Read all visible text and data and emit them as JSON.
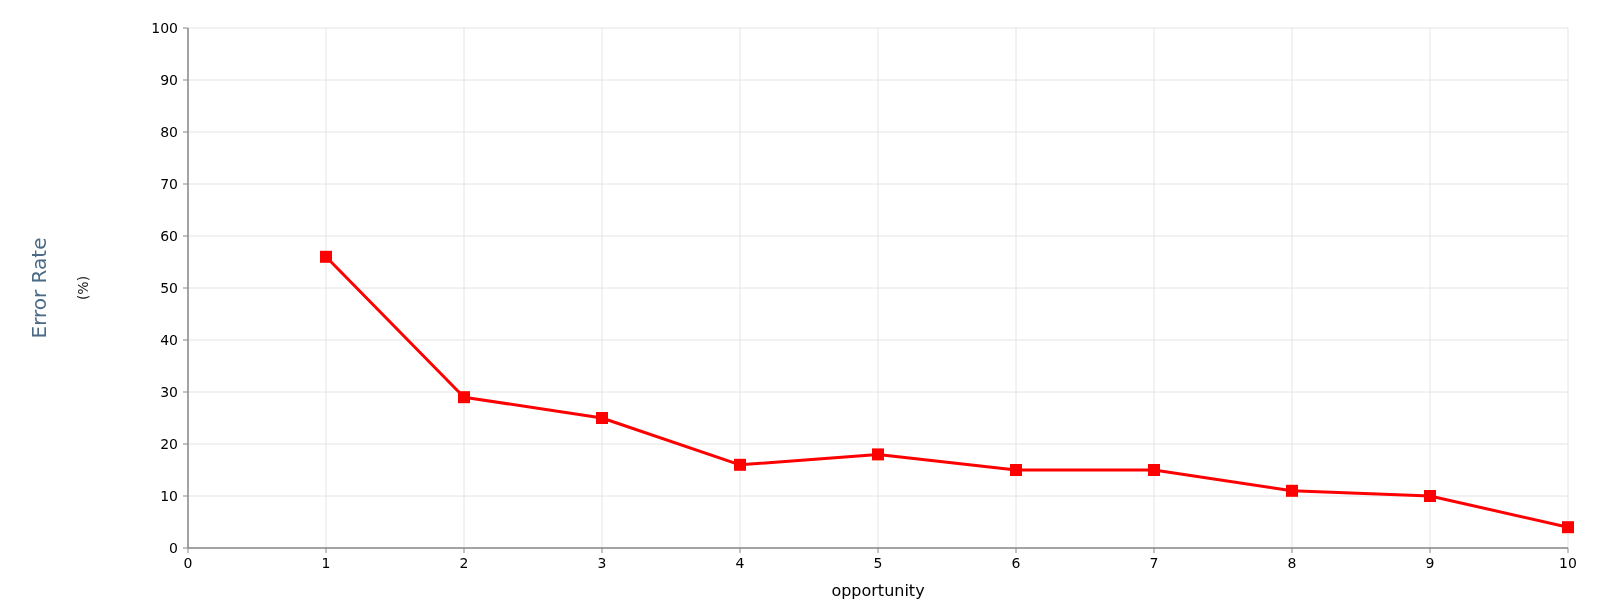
{
  "chart_data": {
    "type": "line",
    "xlabel": "opportunity",
    "ylabel": "Error Rate\n(%)",
    "x": [
      1,
      2,
      3,
      4,
      5,
      6,
      7,
      8,
      9,
      10
    ],
    "series": [
      {
        "color": "#ff0000",
        "values": [
          56,
          29,
          25,
          16,
          18,
          15,
          15,
          11,
          10,
          4
        ]
      }
    ],
    "xlim": [
      0,
      10
    ],
    "xticks": [
      0,
      1,
      2,
      3,
      4,
      5,
      6,
      7,
      8,
      9,
      10
    ],
    "ylim": [
      0,
      100
    ],
    "yticks": [
      0,
      10,
      20,
      30,
      40,
      50,
      60,
      70,
      80,
      90,
      100
    ],
    "grid": true,
    "marker": "square",
    "line_style": "solid"
  }
}
